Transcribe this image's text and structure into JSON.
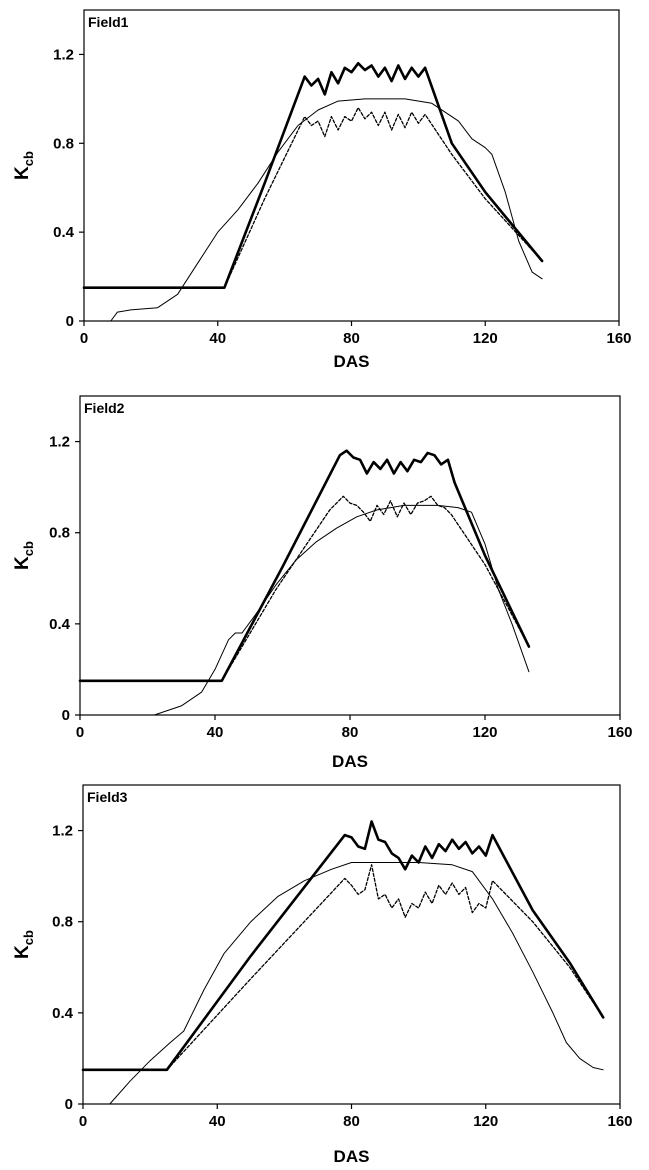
{
  "chart_data": [
    {
      "type": "line",
      "panel_label": "Field1",
      "xlabel": "DAS",
      "ylabel": {
        "main": "K",
        "sub": "cb"
      },
      "xlim": [
        0,
        160
      ],
      "ylim": [
        0,
        1.4
      ],
      "xticks": [
        "0",
        "40",
        "80",
        "120",
        "160"
      ],
      "yticks": [
        "0",
        "0.4",
        "0.8",
        "1.2"
      ],
      "grid": false,
      "series": [
        {
          "style": "thick-solid",
          "points": [
            [
              0,
              0.15
            ],
            [
              42,
              0.15
            ],
            [
              54,
              0.62
            ],
            [
              66,
              1.1
            ],
            [
              68,
              1.06
            ],
            [
              70,
              1.09
            ],
            [
              72,
              1.02
            ],
            [
              74,
              1.12
            ],
            [
              76,
              1.07
            ],
            [
              78,
              1.14
            ],
            [
              80,
              1.12
            ],
            [
              82,
              1.16
            ],
            [
              84,
              1.13
            ],
            [
              86,
              1.15
            ],
            [
              88,
              1.1
            ],
            [
              90,
              1.14
            ],
            [
              92,
              1.08
            ],
            [
              94,
              1.15
            ],
            [
              96,
              1.09
            ],
            [
              98,
              1.14
            ],
            [
              100,
              1.1
            ],
            [
              102,
              1.14
            ],
            [
              110,
              0.8
            ],
            [
              120,
              0.58
            ],
            [
              137,
              0.27
            ]
          ]
        },
        {
          "style": "thin-solid",
          "points": [
            [
              8,
              0.0
            ],
            [
              10,
              0.04
            ],
            [
              14,
              0.05
            ],
            [
              22,
              0.06
            ],
            [
              28,
              0.12
            ],
            [
              34,
              0.26
            ],
            [
              40,
              0.4
            ],
            [
              46,
              0.5
            ],
            [
              52,
              0.62
            ],
            [
              58,
              0.76
            ],
            [
              64,
              0.88
            ],
            [
              70,
              0.95
            ],
            [
              76,
              0.99
            ],
            [
              84,
              1.0
            ],
            [
              96,
              1.0
            ],
            [
              104,
              0.98
            ],
            [
              112,
              0.9
            ],
            [
              116,
              0.82
            ],
            [
              120,
              0.78
            ],
            [
              122,
              0.75
            ],
            [
              126,
              0.58
            ],
            [
              130,
              0.36
            ],
            [
              134,
              0.22
            ],
            [
              137,
              0.19
            ]
          ]
        },
        {
          "style": "dashed",
          "points": [
            [
              42,
              0.15
            ],
            [
              54,
              0.55
            ],
            [
              66,
              0.92
            ],
            [
              68,
              0.88
            ],
            [
              70,
              0.9
            ],
            [
              72,
              0.83
            ],
            [
              74,
              0.92
            ],
            [
              76,
              0.86
            ],
            [
              78,
              0.92
            ],
            [
              80,
              0.9
            ],
            [
              82,
              0.96
            ],
            [
              84,
              0.91
            ],
            [
              86,
              0.94
            ],
            [
              88,
              0.88
            ],
            [
              90,
              0.94
            ],
            [
              92,
              0.86
            ],
            [
              94,
              0.93
            ],
            [
              96,
              0.87
            ],
            [
              98,
              0.94
            ],
            [
              100,
              0.89
            ],
            [
              102,
              0.93
            ],
            [
              110,
              0.75
            ],
            [
              120,
              0.55
            ],
            [
              137,
              0.27
            ]
          ]
        }
      ]
    },
    {
      "type": "line",
      "panel_label": "Field2",
      "xlabel": "DAS",
      "ylabel": {
        "main": "K",
        "sub": "cb"
      },
      "xlim": [
        0,
        160
      ],
      "ylim": [
        0,
        1.4
      ],
      "xticks": [
        "0",
        "40",
        "80",
        "120",
        "160"
      ],
      "yticks": [
        "0",
        "0.4",
        "0.8",
        "1.2"
      ],
      "grid": false,
      "series": [
        {
          "style": "thick-solid",
          "points": [
            [
              0,
              0.15
            ],
            [
              42,
              0.15
            ],
            [
              60,
              0.65
            ],
            [
              77,
              1.14
            ],
            [
              79,
              1.16
            ],
            [
              81,
              1.13
            ],
            [
              83,
              1.12
            ],
            [
              85,
              1.06
            ],
            [
              87,
              1.11
            ],
            [
              89,
              1.08
            ],
            [
              91,
              1.12
            ],
            [
              93,
              1.06
            ],
            [
              95,
              1.11
            ],
            [
              97,
              1.07
            ],
            [
              99,
              1.12
            ],
            [
              101,
              1.11
            ],
            [
              103,
              1.15
            ],
            [
              105,
              1.14
            ],
            [
              107,
              1.1
            ],
            [
              109,
              1.12
            ],
            [
              111,
              1.02
            ],
            [
              120,
              0.7
            ],
            [
              133,
              0.3
            ]
          ]
        },
        {
          "style": "thin-solid",
          "points": [
            [
              22,
              0.0
            ],
            [
              30,
              0.04
            ],
            [
              36,
              0.1
            ],
            [
              40,
              0.2
            ],
            [
              44,
              0.33
            ],
            [
              46,
              0.36
            ],
            [
              48,
              0.36
            ],
            [
              52,
              0.44
            ],
            [
              58,
              0.57
            ],
            [
              64,
              0.68
            ],
            [
              70,
              0.76
            ],
            [
              76,
              0.82
            ],
            [
              82,
              0.87
            ],
            [
              88,
              0.9
            ],
            [
              96,
              0.92
            ],
            [
              106,
              0.92
            ],
            [
              112,
              0.91
            ],
            [
              116,
              0.89
            ],
            [
              120,
              0.75
            ],
            [
              124,
              0.55
            ],
            [
              128,
              0.4
            ],
            [
              133,
              0.19
            ]
          ]
        },
        {
          "style": "dashed",
          "points": [
            [
              42,
              0.15
            ],
            [
              58,
              0.55
            ],
            [
              74,
              0.9
            ],
            [
              78,
              0.96
            ],
            [
              80,
              0.93
            ],
            [
              82,
              0.92
            ],
            [
              84,
              0.89
            ],
            [
              86,
              0.85
            ],
            [
              88,
              0.92
            ],
            [
              90,
              0.88
            ],
            [
              92,
              0.94
            ],
            [
              94,
              0.87
            ],
            [
              96,
              0.93
            ],
            [
              98,
              0.88
            ],
            [
              100,
              0.93
            ],
            [
              102,
              0.94
            ],
            [
              104,
              0.96
            ],
            [
              106,
              0.92
            ],
            [
              108,
              0.91
            ],
            [
              110,
              0.88
            ],
            [
              120,
              0.66
            ],
            [
              133,
              0.3
            ]
          ]
        }
      ]
    },
    {
      "type": "line",
      "panel_label": "Field3",
      "xlabel": "DAS",
      "ylabel": {
        "main": "K",
        "sub": "cb"
      },
      "xlim": [
        0,
        160
      ],
      "ylim": [
        0,
        1.4
      ],
      "xticks": [
        "0",
        "40",
        "80",
        "120",
        "160"
      ],
      "yticks": [
        "0",
        "0.4",
        "0.8",
        "1.2"
      ],
      "grid": false,
      "series": [
        {
          "style": "thick-solid",
          "points": [
            [
              0,
              0.15
            ],
            [
              25,
              0.15
            ],
            [
              50,
              0.65
            ],
            [
              78,
              1.18
            ],
            [
              80,
              1.17
            ],
            [
              82,
              1.13
            ],
            [
              84,
              1.12
            ],
            [
              86,
              1.24
            ],
            [
              88,
              1.16
            ],
            [
              90,
              1.15
            ],
            [
              92,
              1.1
            ],
            [
              94,
              1.08
            ],
            [
              96,
              1.03
            ],
            [
              98,
              1.09
            ],
            [
              100,
              1.06
            ],
            [
              102,
              1.13
            ],
            [
              104,
              1.08
            ],
            [
              106,
              1.14
            ],
            [
              108,
              1.11
            ],
            [
              110,
              1.16
            ],
            [
              112,
              1.12
            ],
            [
              114,
              1.15
            ],
            [
              116,
              1.1
            ],
            [
              118,
              1.13
            ],
            [
              120,
              1.09
            ],
            [
              122,
              1.18
            ],
            [
              134,
              0.85
            ],
            [
              145,
              0.62
            ],
            [
              155,
              0.38
            ]
          ]
        },
        {
          "style": "thin-solid",
          "points": [
            [
              8,
              0.0
            ],
            [
              14,
              0.1
            ],
            [
              20,
              0.19
            ],
            [
              26,
              0.27
            ],
            [
              30,
              0.32
            ],
            [
              36,
              0.5
            ],
            [
              42,
              0.66
            ],
            [
              50,
              0.8
            ],
            [
              58,
              0.91
            ],
            [
              66,
              0.98
            ],
            [
              74,
              1.03
            ],
            [
              80,
              1.06
            ],
            [
              90,
              1.06
            ],
            [
              100,
              1.06
            ],
            [
              110,
              1.05
            ],
            [
              116,
              1.02
            ],
            [
              122,
              0.9
            ],
            [
              128,
              0.75
            ],
            [
              134,
              0.58
            ],
            [
              140,
              0.4
            ],
            [
              144,
              0.27
            ],
            [
              148,
              0.2
            ],
            [
              152,
              0.16
            ],
            [
              155,
              0.15
            ]
          ]
        },
        {
          "style": "dashed",
          "points": [
            [
              25,
              0.15
            ],
            [
              50,
              0.55
            ],
            [
              78,
              0.99
            ],
            [
              80,
              0.96
            ],
            [
              82,
              0.92
            ],
            [
              84,
              0.94
            ],
            [
              86,
              1.05
            ],
            [
              88,
              0.9
            ],
            [
              90,
              0.92
            ],
            [
              92,
              0.86
            ],
            [
              94,
              0.9
            ],
            [
              96,
              0.82
            ],
            [
              98,
              0.88
            ],
            [
              100,
              0.86
            ],
            [
              102,
              0.93
            ],
            [
              104,
              0.88
            ],
            [
              106,
              0.96
            ],
            [
              108,
              0.92
            ],
            [
              110,
              0.97
            ],
            [
              112,
              0.92
            ],
            [
              114,
              0.95
            ],
            [
              116,
              0.84
            ],
            [
              118,
              0.88
            ],
            [
              120,
              0.86
            ],
            [
              122,
              0.98
            ],
            [
              134,
              0.8
            ],
            [
              145,
              0.6
            ],
            [
              155,
              0.38
            ]
          ]
        }
      ]
    }
  ]
}
